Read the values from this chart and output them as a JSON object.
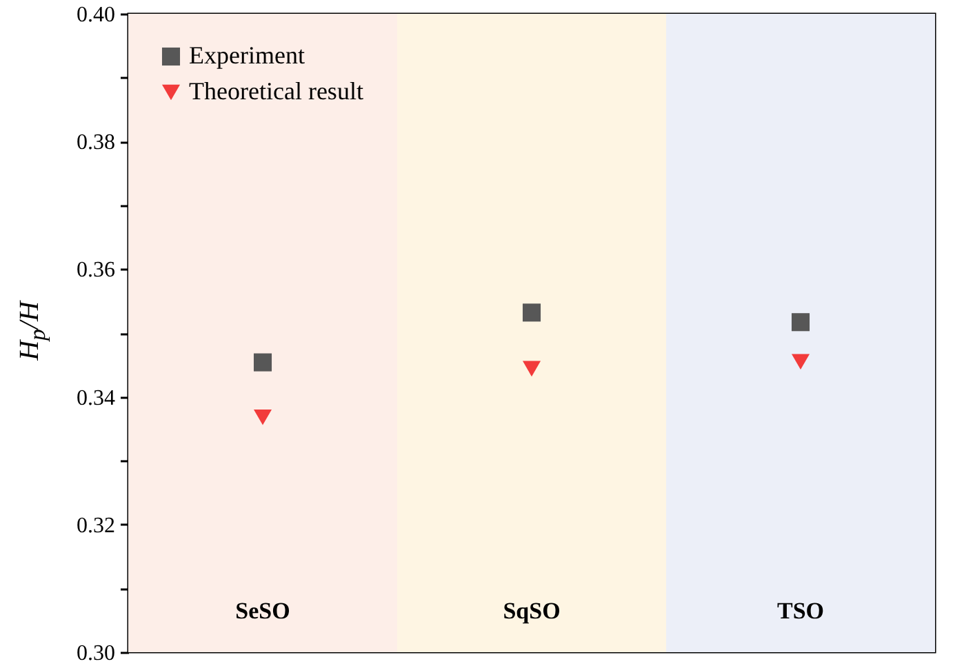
{
  "chart_data": {
    "type": "scatter",
    "ylabel": "H$_{p}$/H",
    "categories": [
      "SeSO",
      "SqSO",
      "TSO"
    ],
    "series": [
      {
        "name": "Experiment",
        "color": "#575757",
        "marker": "square",
        "values": [
          0.3454,
          0.3532,
          0.3517
        ]
      },
      {
        "name": "Theoretical result",
        "color": "#f23b3b",
        "marker": "triangle",
        "values": [
          0.3368,
          0.3444,
          0.3455
        ]
      }
    ],
    "bands": [
      {
        "axis": "x",
        "from": "SeSO",
        "to": "SeSO",
        "color": "#fdeee8"
      },
      {
        "axis": "x",
        "from": "SqSO",
        "to": "SqSO",
        "color": "#fef5e3"
      },
      {
        "axis": "x",
        "from": "TSO",
        "to": "TSO",
        "color": "#eceff8"
      }
    ],
    "ylim": [
      0.3,
      0.4
    ],
    "yticks": [
      "0.30",
      {
        "value": 0.31,
        "label": null
      },
      0.32,
      {
        "value": 0.33,
        "label": null
      },
      0.34,
      {
        "value": 0.35,
        "label": null
      },
      0.36,
      {
        "value": 0.37,
        "label": null
      },
      0.38,
      {
        "value": 0.39,
        "label": null
      },
      "0.40"
    ],
    "legend": "top left",
    "grid": false
  }
}
